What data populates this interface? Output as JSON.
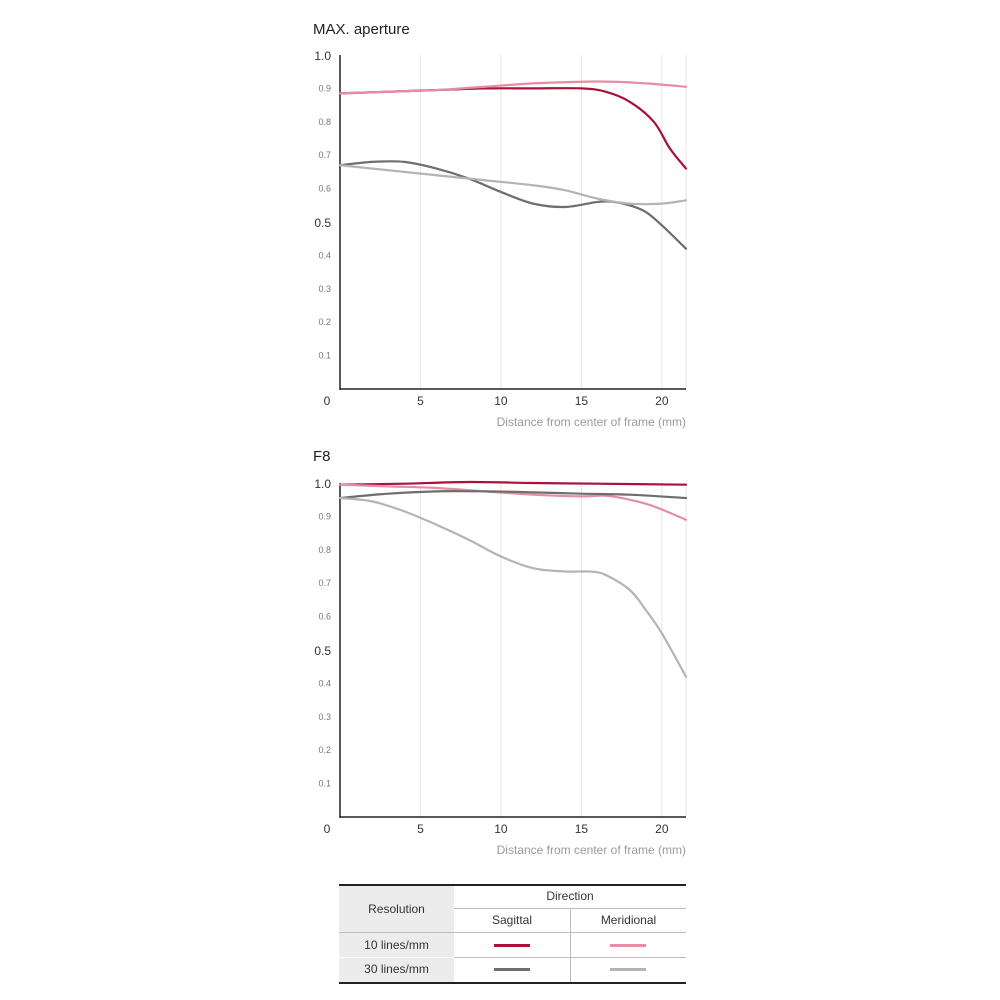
{
  "chart_data": [
    {
      "type": "line",
      "title": "MAX. aperture",
      "xlabel": "Distance from center of frame (mm)",
      "ylabel": "",
      "xlim": [
        0,
        21.5
      ],
      "ylim": [
        0,
        1.0
      ],
      "x_ticks": [
        0,
        5,
        10,
        15,
        20
      ],
      "y_ticks": [
        0.1,
        0.2,
        0.3,
        0.4,
        0.5,
        0.6,
        0.7,
        0.8,
        0.9,
        1.0
      ],
      "y_major_ticks": [
        0.5,
        1.0
      ],
      "grid": "vertical",
      "series": [
        {
          "color": "#a8123d",
          "x": [
            0,
            3,
            6,
            9,
            12,
            15,
            16.5,
            18,
            19.5,
            20.5,
            21.5
          ],
          "values": [
            0.885,
            0.89,
            0.895,
            0.9,
            0.9,
            0.9,
            0.89,
            0.86,
            0.8,
            0.72,
            0.66
          ]
        },
        {
          "color": "#e48da3",
          "x": [
            0,
            3,
            6,
            9,
            12,
            15,
            17,
            19,
            21.5
          ],
          "values": [
            0.885,
            0.89,
            0.895,
            0.905,
            0.915,
            0.92,
            0.92,
            0.915,
            0.905
          ]
        },
        {
          "color": "#6e6e6e",
          "x": [
            0,
            2,
            4,
            6,
            8,
            10,
            12,
            14,
            16,
            17,
            18,
            19,
            20,
            21.5
          ],
          "values": [
            0.67,
            0.68,
            0.68,
            0.66,
            0.63,
            0.59,
            0.555,
            0.545,
            0.56,
            0.56,
            0.55,
            0.53,
            0.49,
            0.42
          ]
        },
        {
          "color": "#b4b4b4",
          "x": [
            0,
            3,
            6,
            9,
            12,
            14,
            16,
            18,
            20,
            21.5
          ],
          "values": [
            0.67,
            0.655,
            0.64,
            0.625,
            0.61,
            0.595,
            0.57,
            0.555,
            0.555,
            0.565
          ]
        }
      ]
    },
    {
      "type": "line",
      "title": "F8",
      "xlabel": "Distance from center of frame (mm)",
      "ylabel": "",
      "xlim": [
        0,
        21.5
      ],
      "ylim": [
        0,
        1.0
      ],
      "x_ticks": [
        0,
        5,
        10,
        15,
        20
      ],
      "y_ticks": [
        0.1,
        0.2,
        0.3,
        0.4,
        0.5,
        0.6,
        0.7,
        0.8,
        0.9,
        1.0
      ],
      "y_major_ticks": [
        0.5,
        1.0
      ],
      "grid": "vertical",
      "series": [
        {
          "color": "#a8123d",
          "x": [
            0,
            4,
            8,
            12,
            16,
            21.5
          ],
          "values": [
            0.995,
            0.998,
            1.003,
            1.0,
            0.998,
            0.995
          ]
        },
        {
          "color": "#e48da3",
          "x": [
            0,
            3,
            6,
            9,
            12,
            15,
            16.5,
            18,
            19.5,
            21.5
          ],
          "values": [
            0.995,
            0.99,
            0.985,
            0.975,
            0.965,
            0.96,
            0.962,
            0.95,
            0.93,
            0.89
          ]
        },
        {
          "color": "#6e6e6e",
          "x": [
            0,
            3,
            6,
            9,
            12,
            15,
            18,
            21.5
          ],
          "values": [
            0.955,
            0.968,
            0.975,
            0.975,
            0.972,
            0.968,
            0.965,
            0.955
          ]
        },
        {
          "color": "#b4b4b4",
          "x": [
            0,
            2,
            4,
            6,
            8,
            10,
            12,
            14,
            15.5,
            16.5,
            18,
            19,
            20,
            21.5
          ],
          "values": [
            0.955,
            0.945,
            0.915,
            0.875,
            0.83,
            0.78,
            0.745,
            0.735,
            0.735,
            0.725,
            0.68,
            0.62,
            0.55,
            0.42
          ]
        }
      ]
    }
  ],
  "legend_table": {
    "resolution_header": "Resolution",
    "direction_header": "Direction",
    "sagittal": "Sagittal",
    "meridional": "Meridional",
    "rows": [
      {
        "label": "10 lines/mm",
        "sagittal_color": "#a8123d",
        "meridional_color": "#e48da3"
      },
      {
        "label": "30 lines/mm",
        "sagittal_color": "#6e6e6e",
        "meridional_color": "#b4b4b4"
      }
    ]
  }
}
